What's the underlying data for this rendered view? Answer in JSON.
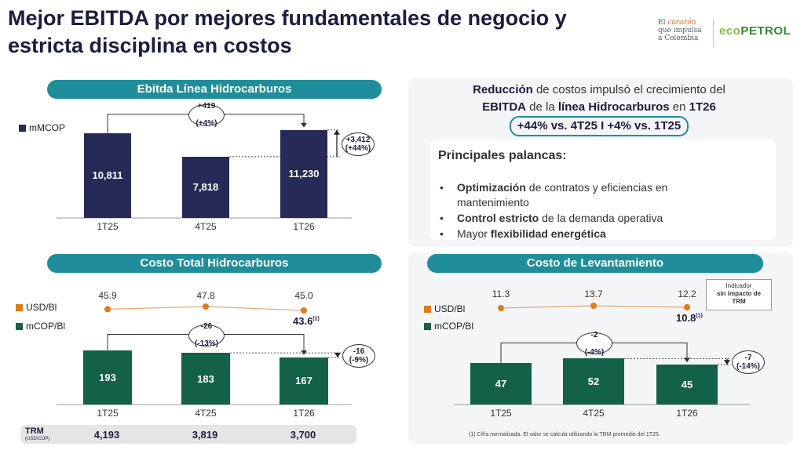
{
  "title": "Mejor EBITDA por mejores fundamentales de negocio y estricta disciplina en costos",
  "logo": {
    "tagline_1": "El",
    "tagline_script": "corazón",
    "tagline_2": "que impulsa",
    "tagline_3": "a Colombia",
    "brand_eco": "eco",
    "brand_rest": "PETROL"
  },
  "colors": {
    "teal": "#1f8e9a",
    "navy": "#262a56",
    "green": "#14614a",
    "orange": "#e07b1a"
  },
  "right_panel": {
    "line1_bold": "Reducción",
    "line1_rest": " de costos impulsó el crecimiento del",
    "line2_bold1": "EBITDA",
    "line2_mid": " de la ",
    "line2_bold2": "línea Hidrocarburos",
    "line2_mid2": " en ",
    "line2_bold3": "1T26",
    "highlight": "+44% vs. 4T25 I +4% vs. 1T25",
    "levers_title": "Principales palancas:",
    "levers": [
      {
        "bold": "Optimización",
        "rest": " de contratos y eficiencias en mantenimiento",
        "pre": ""
      },
      {
        "bold": "Control estricto",
        "rest": " de la demanda operativa",
        "pre": ""
      },
      {
        "bold": "flexibilidad energética",
        "rest": "",
        "pre": "Mayor "
      }
    ],
    "bullet": "•"
  },
  "chart_data": [
    {
      "type": "bar",
      "title": "Ebitda Línea Hidrocarburos",
      "legend": [
        {
          "name": "mMCOP",
          "color": "#262a56"
        }
      ],
      "categories": [
        "1T25",
        "4T25",
        "1T26"
      ],
      "series": [
        {
          "name": "mMCOP",
          "values": [
            10811,
            7818,
            11230
          ],
          "labels": [
            "10,811",
            "7,818",
            "11,230"
          ]
        }
      ],
      "ylim": [
        0,
        12000
      ],
      "annotations": [
        {
          "from": "1T25",
          "to": "1T26",
          "text_1": "+419",
          "text_2": "(+4%)"
        },
        {
          "from": "4T25",
          "to": "1T26",
          "text_1": "+3,412",
          "text_2": "(+44%)"
        }
      ]
    },
    {
      "type": "bar",
      "title": "Costo Total Hidrocarburos",
      "legend": [
        {
          "name": "USD/Bl",
          "color": "#e07b1a"
        },
        {
          "name": "mCOP/Bl",
          "color": "#14614a"
        }
      ],
      "categories": [
        "1T25",
        "4T25",
        "1T26"
      ],
      "line_series": {
        "name": "USD/Bl",
        "values": [
          45.9,
          47.8,
          45.0
        ],
        "labels": [
          "45.9",
          "47.8",
          "45.0"
        ],
        "adjusted_label": "43.6",
        "adjusted_note": "(1)"
      },
      "series": [
        {
          "name": "mCOP/Bl",
          "values": [
            193,
            183,
            167
          ],
          "labels": [
            "193",
            "183",
            "167"
          ]
        }
      ],
      "ylim": [
        0,
        200
      ],
      "annotations": [
        {
          "from": "1T25",
          "to": "1T26",
          "text_1": "-26",
          "text_2": "(-13%)"
        },
        {
          "from": "4T25",
          "to": "1T26",
          "text_1": "-16",
          "text_2": "(-9%)"
        }
      ],
      "trm": {
        "label": "TRM",
        "sublabel": "(USD/COP)",
        "values": [
          "4,193",
          "3,819",
          "3,700"
        ]
      }
    },
    {
      "type": "bar",
      "title": "Costo de Levantamiento",
      "legend": [
        {
          "name": "USD/Bl",
          "color": "#e07b1a"
        },
        {
          "name": "mCOP/Bl",
          "color": "#14614a"
        }
      ],
      "categories": [
        "1T25",
        "4T25",
        "1T26"
      ],
      "line_series": {
        "name": "USD/Bl",
        "values": [
          11.3,
          13.7,
          12.2
        ],
        "labels": [
          "11.3",
          "13.7",
          "12.2"
        ],
        "adjusted_label": "10.8",
        "adjusted_note": "(1)"
      },
      "series": [
        {
          "name": "mCOP/Bl",
          "values": [
            47,
            52,
            45
          ],
          "labels": [
            "47",
            "52",
            "45"
          ]
        }
      ],
      "ylim": [
        0,
        55
      ],
      "annotations": [
        {
          "from": "1T25",
          "to": "1T26",
          "text_1": "-2",
          "text_2": "(-4%)"
        },
        {
          "from": "4T25",
          "to": "1T26",
          "text_1": "-7",
          "text_2": "(-14%)"
        }
      ],
      "indicator_1": "Indicador",
      "indicator_2": "sin impacto de",
      "indicator_3": "TRM"
    }
  ],
  "footnote": "(1) Cifra normalizada. El valor se calcula utilizando la TRM promedio del 1T25."
}
